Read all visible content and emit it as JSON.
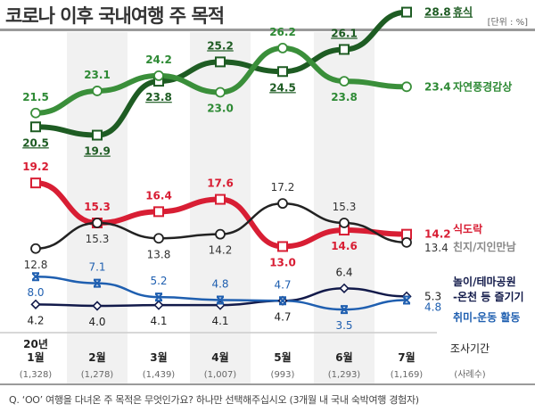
{
  "header": {
    "title": "코로나 이후 국내여행 주 목적",
    "unit": "[단위 : %]"
  },
  "footnote": "Q. ‘OO’ 여행을 다녀온 주 목적은 무엇인가요? 하나만 선택해주십시오 (3개월 내 국내 숙박여행 경험자)",
  "chart_data": {
    "type": "line",
    "title": "코로나 이후 국내여행 주 목적",
    "unit": "%",
    "year_label": "20년",
    "categories": [
      "1월",
      "2월",
      "3월",
      "4월",
      "5월",
      "6월",
      "7월"
    ],
    "sample_sizes": [
      "(1,328)",
      "(1,278)",
      "(1,439)",
      "(1,007)",
      "(993)",
      "(1,293)",
      "(1,169)"
    ],
    "axis_label_period": "조사기간",
    "axis_label_samples": "(사례수)",
    "grid": false,
    "legend": "right",
    "series": [
      {
        "name": "휴식",
        "color": "#1e5c23",
        "marker": "square",
        "values": [
          20.5,
          19.9,
          23.8,
          25.2,
          24.5,
          26.1,
          28.8
        ]
      },
      {
        "name": "자연풍경감상",
        "color": "#3a8f3a",
        "marker": "circle",
        "values": [
          21.5,
          23.1,
          24.2,
          23.0,
          26.2,
          23.8,
          23.4
        ]
      },
      {
        "name": "식도락",
        "color": "#d81e34",
        "marker": "square",
        "values": [
          19.2,
          15.3,
          16.4,
          17.6,
          13.0,
          14.6,
          14.2
        ]
      },
      {
        "name": "친지/지인만남",
        "color": "#222222",
        "marker": "circle",
        "values": [
          12.8,
          15.3,
          13.8,
          14.2,
          17.2,
          15.3,
          13.4
        ]
      },
      {
        "name": "놀이/테마공원-온천 등 즐기기",
        "color": "#121a4a",
        "marker": "diamond",
        "values": [
          4.2,
          4.0,
          4.1,
          4.1,
          4.7,
          6.4,
          5.3
        ]
      },
      {
        "name": "취미-운동 활동",
        "color": "#1f5fb0",
        "marker": "x",
        "values": [
          8.0,
          7.1,
          5.2,
          4.8,
          4.7,
          3.5,
          4.8
        ]
      }
    ],
    "legend_labels": {
      "rest": "휴식",
      "nature": "자연풍경감상",
      "food": "식도락",
      "friends": "친지/지인만남",
      "themepark_line1": "놀이/테마공원",
      "themepark_line2": "-온천 등 즐기기",
      "hobby": "취미-운동 활동"
    }
  }
}
